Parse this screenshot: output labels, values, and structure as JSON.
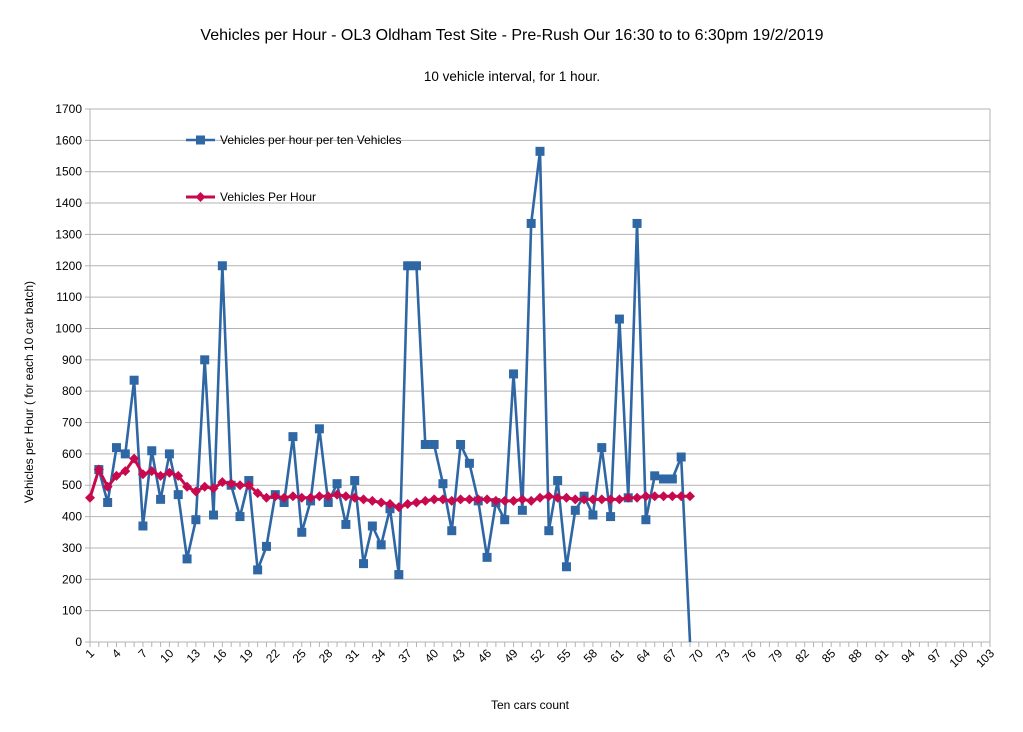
{
  "chart_data": {
    "type": "line",
    "title": "Vehicles per Hour - OL3   Oldham Test Site - Pre-Rush Our 16:30 to to 6:30pm 19/2/2019",
    "subtitle": "10 vehicle interval, for 1 hour.",
    "xlabel": "Ten cars count",
    "ylabel": "Vehicles per Hour ( for each 10 car batch)",
    "xlim": [
      1,
      103
    ],
    "ylim": [
      0,
      1700
    ],
    "x_tick_labels": [
      1,
      4,
      7,
      10,
      13,
      16,
      19,
      22,
      25,
      28,
      31,
      34,
      37,
      40,
      43,
      46,
      49,
      52,
      55,
      58,
      61,
      64,
      67,
      70,
      73,
      76,
      79,
      82,
      85,
      88,
      91,
      94,
      97,
      100,
      103
    ],
    "y_tick_labels": [
      0,
      100,
      200,
      300,
      400,
      500,
      600,
      700,
      800,
      900,
      1000,
      1100,
      1200,
      1300,
      1400,
      1500,
      1600,
      1700
    ],
    "grid": "horizontal",
    "legend_position": "top-left",
    "series": [
      {
        "name": "Vehicles per hour per ten Vehicles",
        "color": "#2e67a4",
        "marker": "square",
        "x_start": 2,
        "values": [
          550,
          445,
          620,
          600,
          835,
          370,
          610,
          455,
          600,
          470,
          265,
          390,
          900,
          405,
          1200,
          500,
          400,
          515,
          230,
          305,
          470,
          445,
          655,
          350,
          450,
          680,
          445,
          505,
          375,
          515,
          250,
          370,
          310,
          425,
          215,
          1200,
          1200,
          630,
          630,
          505,
          355,
          630,
          570,
          450,
          270,
          445,
          390,
          855,
          420,
          1335,
          1565,
          355,
          515,
          240,
          420,
          465,
          405,
          620,
          400,
          1030,
          460,
          1335,
          390,
          530,
          520,
          520,
          590,
          0
        ]
      },
      {
        "name": "Vehicles Per Hour",
        "color": "#c8094e",
        "marker": "diamond",
        "x_start": 1,
        "values": [
          460,
          550,
          495,
          530,
          545,
          585,
          535,
          545,
          530,
          540,
          530,
          495,
          480,
          495,
          490,
          510,
          505,
          500,
          500,
          475,
          460,
          465,
          460,
          465,
          460,
          460,
          465,
          465,
          470,
          465,
          460,
          455,
          450,
          445,
          440,
          430,
          440,
          445,
          450,
          455,
          455,
          450,
          455,
          455,
          455,
          455,
          450,
          450,
          450,
          455,
          450,
          460,
          465,
          460,
          460,
          455,
          455,
          455,
          455,
          455,
          455,
          460,
          460,
          465,
          465,
          465,
          465,
          465,
          465
        ]
      }
    ]
  }
}
